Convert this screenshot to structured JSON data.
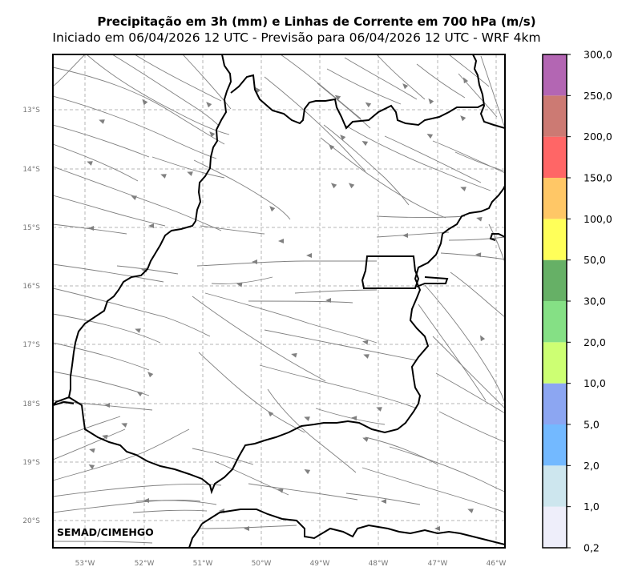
{
  "title": "Precipitação em 3h (mm) e Linhas de Corrente em 700 hPa (m/s)",
  "subtitle": "Iniciado em 06/04/2026 12 UTC - Previsão para 06/04/2026 12 UTC - WRF 4km",
  "credit": "SEMAD/CIMEHGO",
  "lon_ticks": [
    "53°W",
    "52°W",
    "51°W",
    "50°W",
    "49°W",
    "48°W",
    "47°W",
    "46°W"
  ],
  "lat_ticks": [
    "13°S",
    "14°S",
    "15°S",
    "16°S",
    "17°S",
    "18°S",
    "19°S",
    "20°S"
  ],
  "colorbar": {
    "labels": [
      "0,2",
      "1,0",
      "2,0",
      "5,0",
      "10,0",
      "20,0",
      "30,0",
      "50,0",
      "100,0",
      "150,0",
      "200,0",
      "250,0",
      "300,0"
    ],
    "colors": [
      "#eeeefa",
      "#cde6ee",
      "#73b9ff",
      "#8ca6f2",
      "#cdff73",
      "#85e085",
      "#66b066",
      "#ffff59",
      "#ffc766",
      "#ff6666",
      "#cc7a73",
      "#b366b3"
    ]
  },
  "colors": {
    "streamline": "#808080",
    "grid": "#b4b4b4",
    "border": "#000000"
  }
}
